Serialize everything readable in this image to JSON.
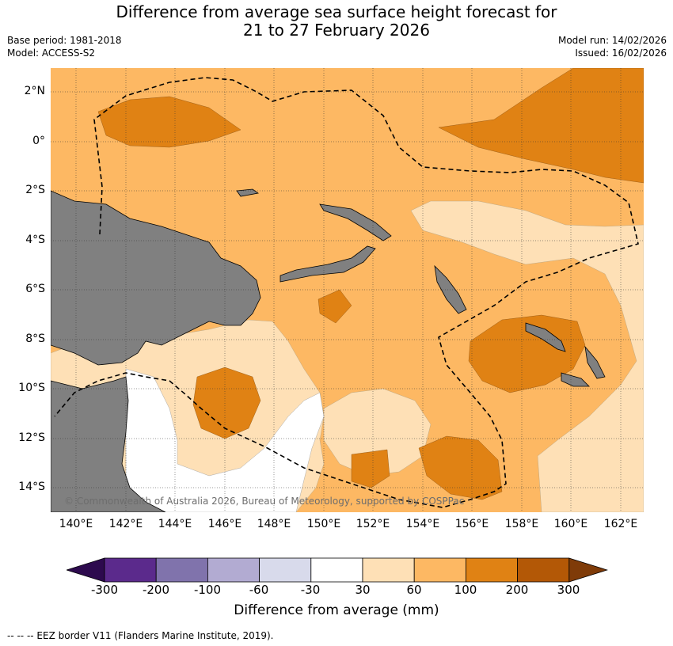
{
  "title_line1": "Difference from average sea surface height forecast for",
  "title_line2": "21 to 27 February 2026",
  "base_period": "Base period: 1981-2018",
  "model": "Model: ACCESS-S2",
  "model_run": "Model run: 14/02/2026",
  "issued": "Issued: 16/02/2026",
  "copyright": "© Commonwealth of Australia 2026, Bureau of Meteorology, supported by COSPPac",
  "lat_labels": [
    "2°N",
    "0°",
    "2°S",
    "4°S",
    "6°S",
    "8°S",
    "10°S",
    "12°S",
    "14°S"
  ],
  "lon_labels": [
    "140°E",
    "142°E",
    "144°E",
    "146°E",
    "148°E",
    "150°E",
    "152°E",
    "154°E",
    "156°E",
    "158°E",
    "160°E",
    "162°E"
  ],
  "colorbar": {
    "title": "Difference from average (mm)",
    "ticks": [
      "-300",
      "-200",
      "-100",
      "-60",
      "-30",
      "30",
      "60",
      "100",
      "200",
      "300"
    ],
    "colors": [
      "#2d0a4e",
      "#5b2a8c",
      "#8073ac",
      "#b2abd2",
      "#d8daeb",
      "#ffffff",
      "#fee0b6",
      "#fdb863",
      "#e08214",
      "#b35806",
      "#7f3b08"
    ]
  },
  "legend_footer": "--  --  -- EEZ border V11 (Flanders Marine Institute, 2019).",
  "colors": {
    "land": "#808080",
    "band_30_60": "#fee0b6",
    "band_60_100": "#fdb863",
    "band_100_200": "#e08214",
    "neutral": "#ffffff"
  }
}
